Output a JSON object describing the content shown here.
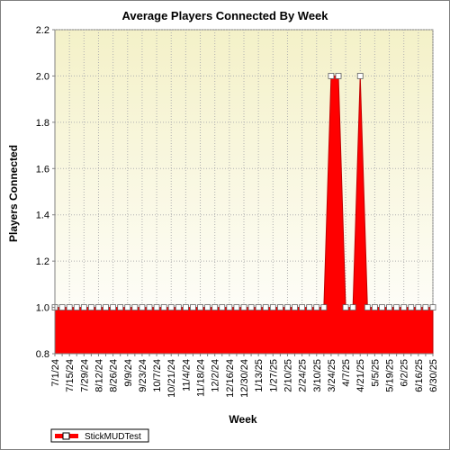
{
  "chart_data": {
    "type": "area",
    "title": "Average Players Connected By Week",
    "xlabel": "Week",
    "ylabel": "Players Connected",
    "ylim": [
      0.8,
      2.2
    ],
    "yticks": [
      "0.8",
      "1.0",
      "1.2",
      "1.4",
      "1.6",
      "1.8",
      "2.0",
      "2.2"
    ],
    "xtick_labels": [
      "7/1/24",
      "7/15/24",
      "7/29/24",
      "8/12/24",
      "8/26/24",
      "9/9/24",
      "9/23/24",
      "10/7/24",
      "10/21/24",
      "11/4/24",
      "11/18/24",
      "12/2/24",
      "12/16/24",
      "12/30/24",
      "1/13/25",
      "1/27/25",
      "2/10/25",
      "2/24/25",
      "3/10/25",
      "3/24/25",
      "4/7/25",
      "4/21/25",
      "5/5/25",
      "5/19/25",
      "6/2/25",
      "6/16/25",
      "6/30/25"
    ],
    "x": [
      "7/1/24",
      "7/8/24",
      "7/15/24",
      "7/22/24",
      "7/29/24",
      "8/5/24",
      "8/12/24",
      "8/19/24",
      "8/26/24",
      "9/2/24",
      "9/9/24",
      "9/16/24",
      "9/23/24",
      "9/30/24",
      "10/7/24",
      "10/14/24",
      "10/21/24",
      "10/28/24",
      "11/4/24",
      "11/11/24",
      "11/18/24",
      "11/25/24",
      "12/2/24",
      "12/9/24",
      "12/16/24",
      "12/23/24",
      "12/30/24",
      "1/6/25",
      "1/13/25",
      "1/20/25",
      "1/27/25",
      "2/3/25",
      "2/10/25",
      "2/17/25",
      "2/24/25",
      "3/3/25",
      "3/10/25",
      "3/17/25",
      "3/24/25",
      "3/31/25",
      "4/7/25",
      "4/14/25",
      "4/21/25",
      "4/28/25",
      "5/5/25",
      "5/12/25",
      "5/19/25",
      "5/26/25",
      "6/2/25",
      "6/9/25",
      "6/16/25",
      "6/23/25",
      "6/30/25"
    ],
    "series": [
      {
        "name": "StickMUDTest",
        "color": "#ff0000",
        "values": [
          1,
          1,
          1,
          1,
          1,
          1,
          1,
          1,
          1,
          1,
          1,
          1,
          1,
          1,
          1,
          1,
          1,
          1,
          1,
          1,
          1,
          1,
          1,
          1,
          1,
          1,
          1,
          1,
          1,
          1,
          1,
          1,
          1,
          1,
          1,
          1,
          1,
          1,
          2,
          2,
          1,
          1,
          2,
          1,
          1,
          1,
          1,
          1,
          1,
          1,
          1,
          1,
          1
        ]
      }
    ],
    "grid": true,
    "legend": "bottom-left",
    "background_gradient": [
      "#f7f3cc",
      "#ffffff"
    ]
  }
}
